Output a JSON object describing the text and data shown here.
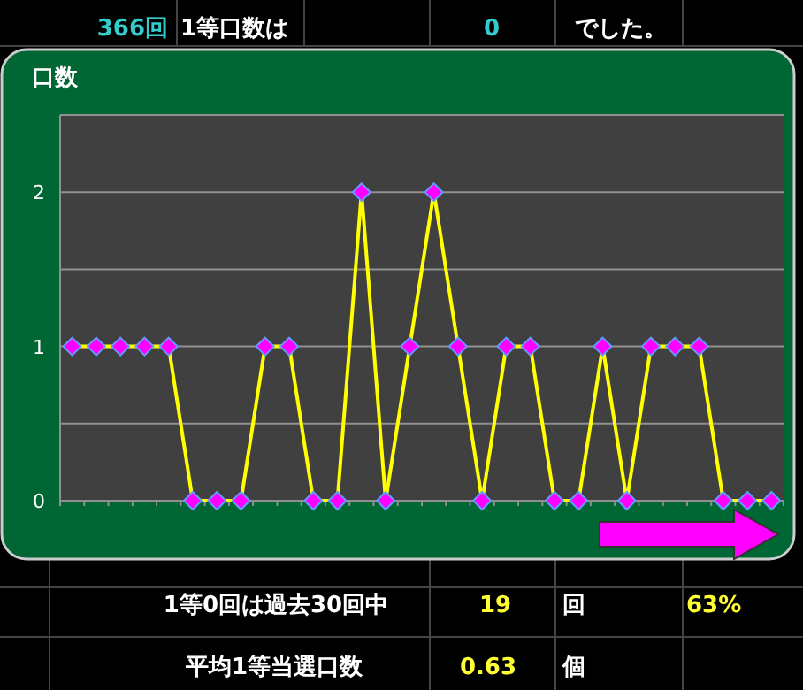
{
  "chart_data": {
    "type": "line",
    "title": "口数",
    "categories": [
      null,
      null,
      null,
      null,
      null,
      null,
      null,
      null,
      null,
      null,
      null,
      null,
      null,
      null,
      null,
      null,
      null,
      null,
      null,
      null,
      null,
      null,
      null,
      null,
      null,
      null,
      null,
      null,
      null,
      null
    ],
    "series": [
      {
        "color": "#ffff00",
        "values": [
          1,
          1,
          1,
          1,
          1,
          0,
          0,
          0,
          1,
          1,
          0,
          0,
          2,
          0,
          1,
          2,
          1,
          0,
          1,
          1,
          0,
          0,
          1,
          0,
          1,
          1,
          1,
          0,
          0,
          0
        ]
      }
    ],
    "marker": "diamond",
    "ylim": [
      0,
      2.5
    ],
    "yticks": [
      0,
      {
        "value": 0.5,
        "label": null
      },
      1,
      {
        "value": 1.5,
        "label": null
      },
      2,
      {
        "value": 2.5,
        "label": null
      }
    ],
    "grid": "y",
    "annotations": [
      "366回",
      "1等口数は",
      "0",
      "でした。",
      "1等0回は過去30回中",
      "19",
      "回",
      "63%",
      "平均1等当選口数",
      "0.63",
      "個"
    ]
  }
}
